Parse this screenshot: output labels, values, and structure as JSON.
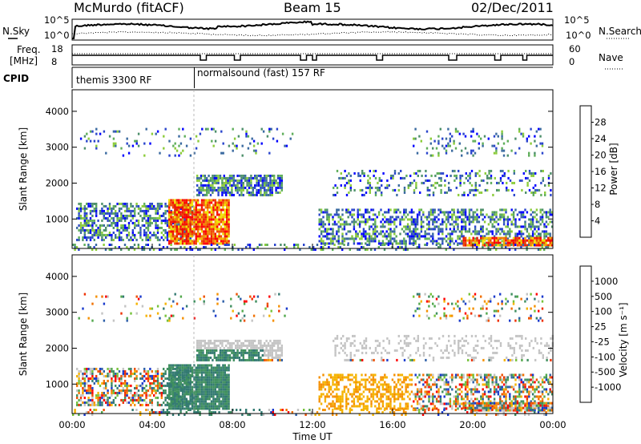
{
  "header": {
    "station": "McMurdo (fitACF)",
    "beam": "Beam 15",
    "date": "02/Dec/2011"
  },
  "top_panels": {
    "nsky_label": "N.Sky",
    "nsearch_label": "N.Search",
    "nsky_ticks": [
      "10^5",
      "10^0"
    ],
    "nsearch_ticks": [
      "10^5",
      "10^0"
    ],
    "freq_label_1": "Freq.",
    "freq_label_2": "[MHz]",
    "freq_ticks": [
      "18",
      "8"
    ],
    "nave_label": "Nave",
    "nave_ticks": [
      "60",
      "0"
    ],
    "cpid_label": "CPID",
    "cpid_segments": [
      {
        "label": "themis 3300 RF",
        "start_hour": 0,
        "end_hour": 6.1
      },
      {
        "label": "normalsound (fast) 157 RF",
        "start_hour": 6.1,
        "end_hour": 24
      }
    ]
  },
  "chart_data": [
    {
      "type": "heatmap",
      "name": "power",
      "ylabel": "Slant Range [km]",
      "yticks": [
        1000,
        2000,
        3000,
        4000
      ],
      "ylim": [
        180,
        4600
      ],
      "xlim": [
        0,
        24
      ],
      "colorbar": {
        "label": "Power [dB]",
        "ticks": [
          "4",
          "8",
          "12",
          "16",
          "20",
          "24",
          "28"
        ],
        "colors": [
          "#0000ff",
          "#2a45cc",
          "#3a6aa0",
          "#4d8f6a",
          "#5fae5a",
          "#8ccc3a",
          "#f0e400",
          "#f3b300",
          "#f07e00",
          "#f04800",
          "#ee1800",
          "#ff0000"
        ]
      }
    },
    {
      "type": "heatmap",
      "name": "velocity",
      "ylabel": "Slant Range [km]",
      "yticks": [
        1000,
        2000,
        3000,
        4000
      ],
      "ylim": [
        180,
        4600
      ],
      "xlim": [
        0,
        24
      ],
      "xticks": [
        "00:00",
        "04:00",
        "08:00",
        "12:00",
        "16:00",
        "20:00",
        "00:00"
      ],
      "xlabel": "Time UT",
      "colorbar": {
        "label": "Velocity [m s⁻¹]",
        "ticks": [
          "1000",
          "500",
          "100",
          "25",
          "-25",
          "-100",
          "-500",
          "-1000"
        ],
        "colors": [
          "#1a3acc",
          "#2d5fa8",
          "#337a72",
          "#3f8f5f",
          "#52a84c",
          "#76c23a",
          "#c4c4c4",
          "#c4c4c4",
          "#f5b300",
          "#f59000",
          "#f07000",
          "#ee5000",
          "#ee3000",
          "#ff0000"
        ]
      }
    }
  ]
}
